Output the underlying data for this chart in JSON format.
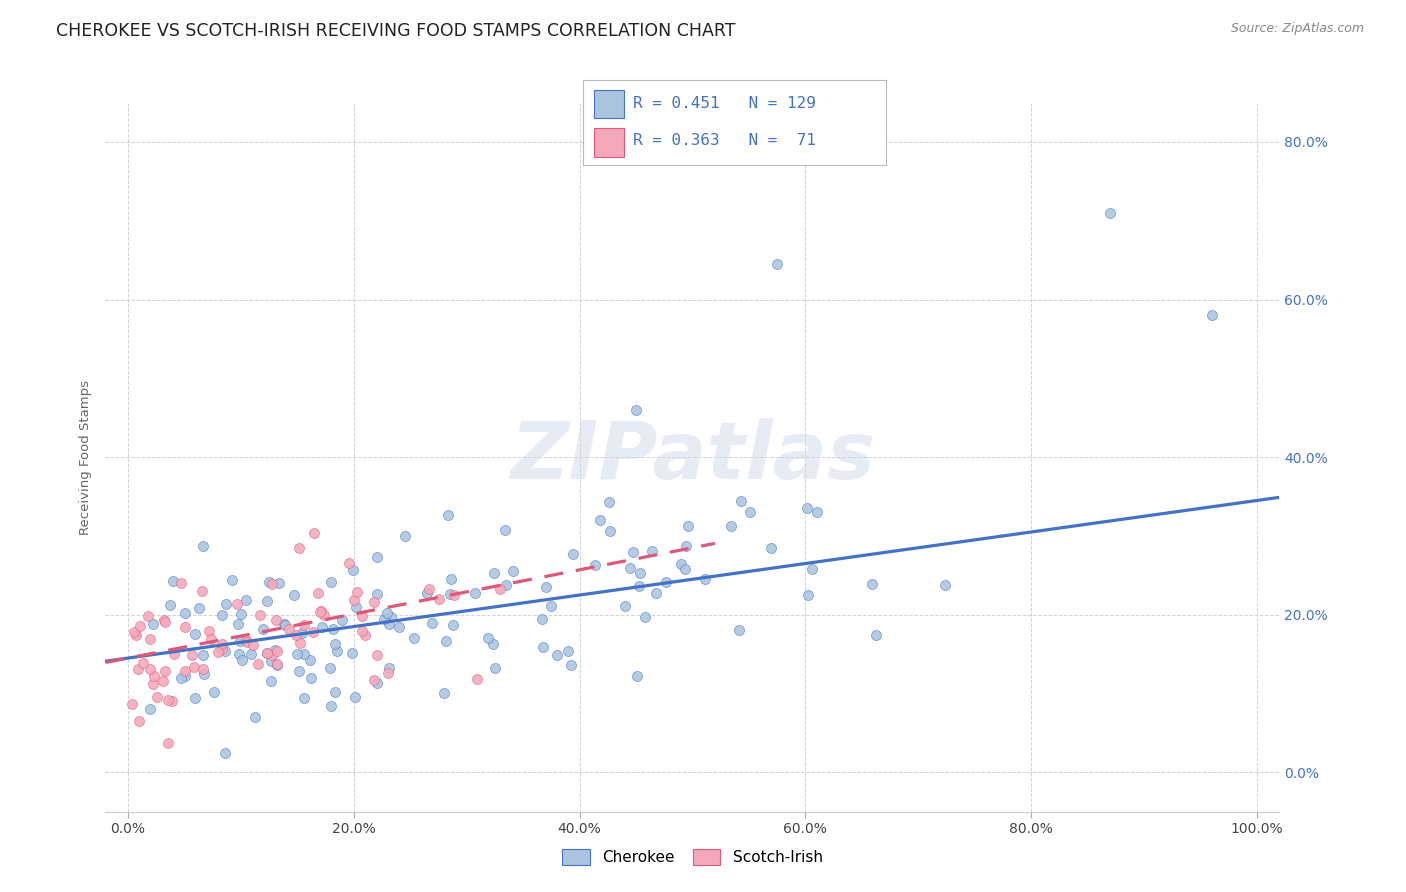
{
  "title": "CHEROKEE VS SCOTCH-IRISH RECEIVING FOOD STAMPS CORRELATION CHART",
  "source": "Source: ZipAtlas.com",
  "ylabel": "Receiving Food Stamps",
  "watermark": "ZIPatlas",
  "cherokee_color": "#aac4e0",
  "scotch_irish_color": "#f4a8bb",
  "cherokee_line_color": "#4472c4",
  "scotch_irish_line_color": "#e05878",
  "cherokee_R": 0.451,
  "cherokee_N": 129,
  "scotch_irish_R": 0.363,
  "scotch_irish_N": 71,
  "xlim": [
    -0.02,
    1.02
  ],
  "ylim": [
    -0.05,
    0.85
  ],
  "xticks": [
    0.0,
    0.2,
    0.4,
    0.6,
    0.8,
    1.0
  ],
  "yticks": [
    0.0,
    0.2,
    0.4,
    0.6,
    0.8
  ],
  "xtick_labels": [
    "0.0%",
    "20.0%",
    "40.0%",
    "60.0%",
    "80.0%",
    "100.0%"
  ],
  "ytick_labels": [
    "0.0%",
    "20.0%",
    "40.0%",
    "60.0%",
    "80.0%"
  ],
  "background_color": "#ffffff",
  "grid_color": "#cccccc",
  "title_fontsize": 12.5,
  "axis_label_fontsize": 9.5,
  "tick_fontsize": 10,
  "source_fontsize": 9,
  "cherokee_line_intercept": 0.145,
  "cherokee_line_slope": 0.2,
  "scotch_irish_line_intercept": 0.145,
  "scotch_irish_line_slope": 0.28,
  "scotch_irish_line_xmax": 0.52
}
